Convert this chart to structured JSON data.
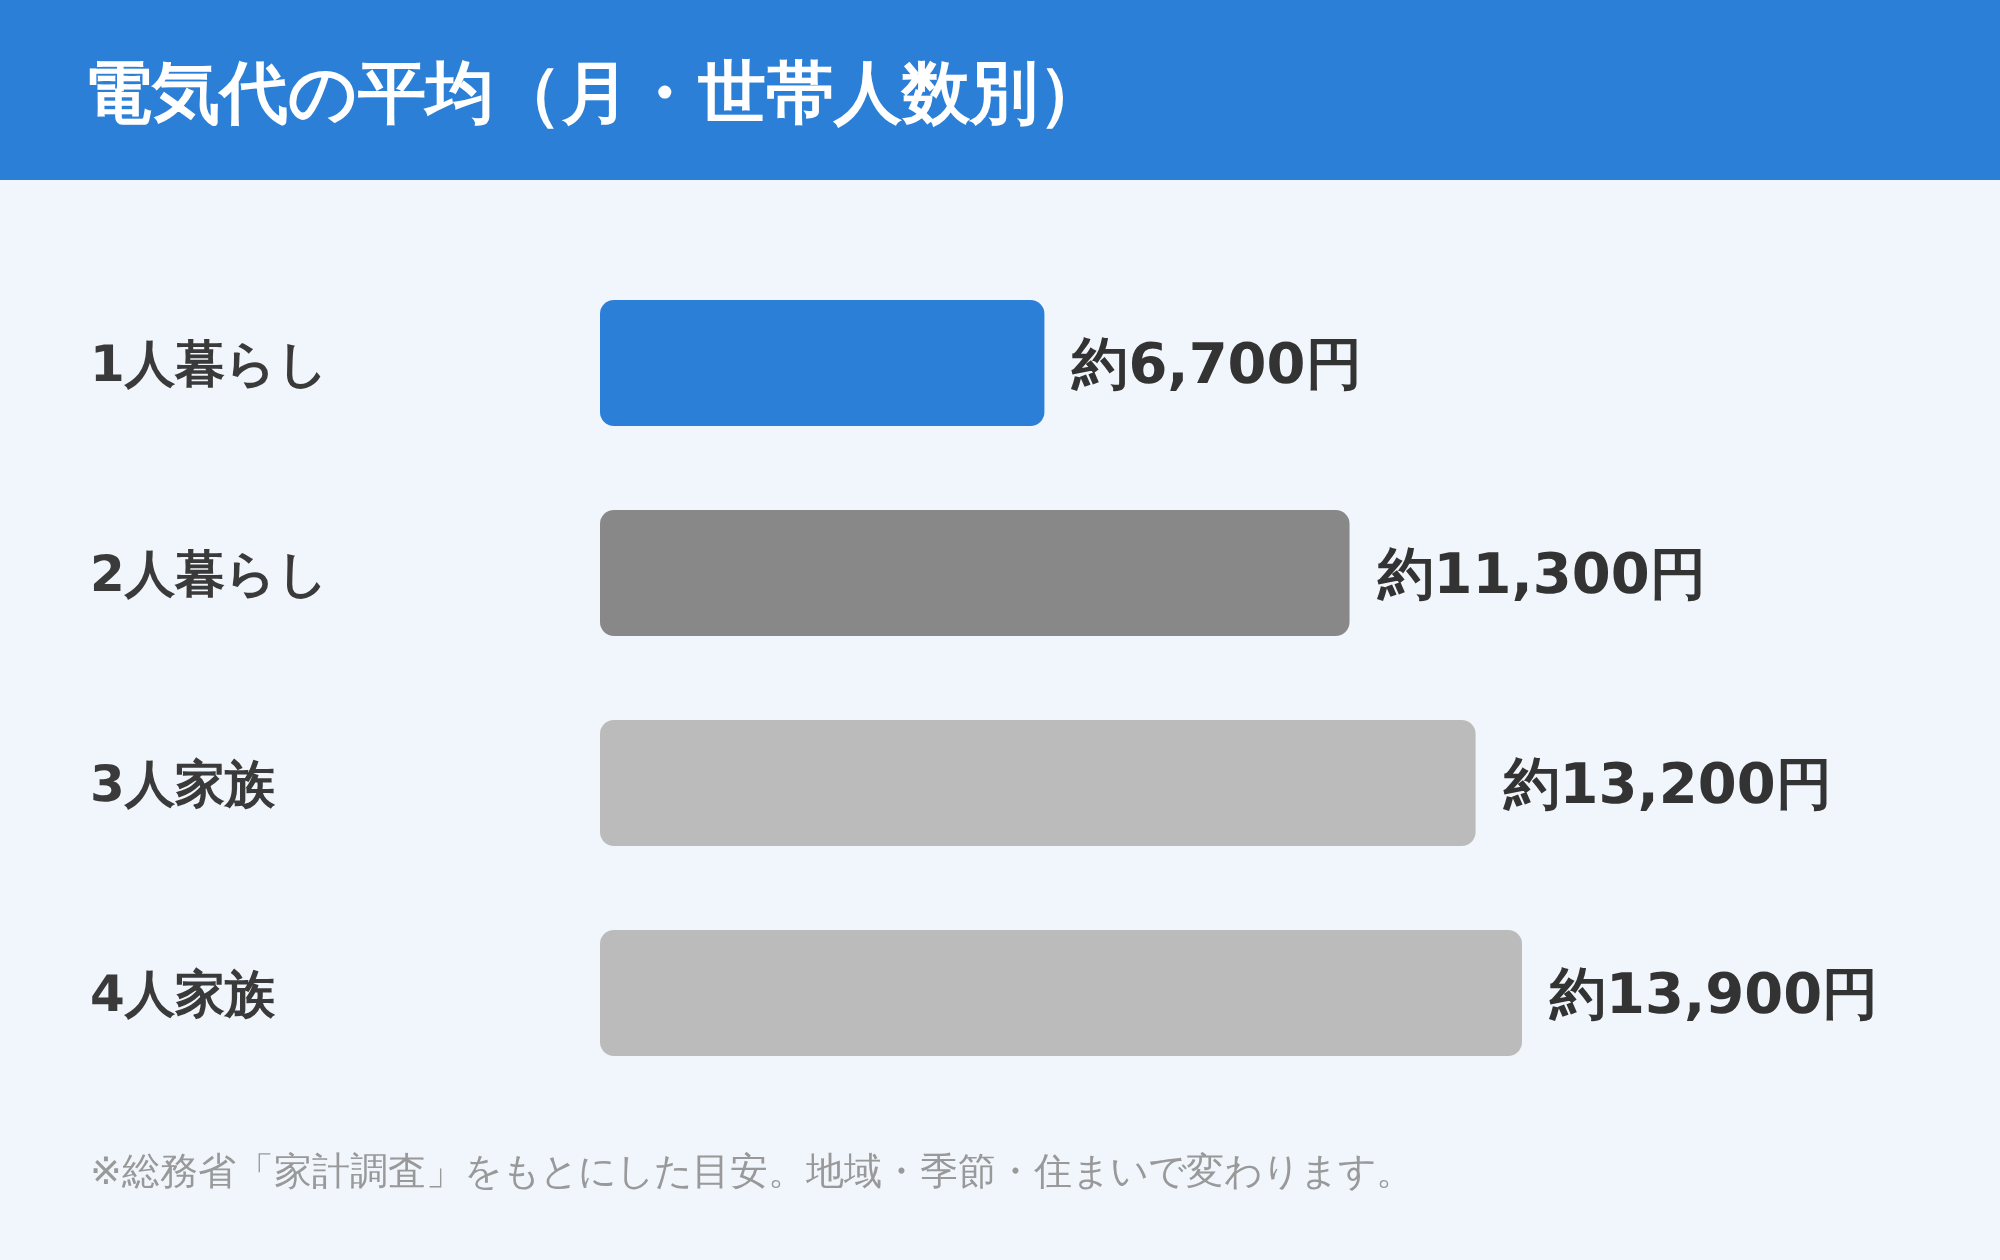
{
  "chart_data": {
    "type": "bar",
    "orientation": "horizontal",
    "title": "電気代の平均（月・世帯人数別）",
    "categories": [
      "1人暮らし",
      "2人暮らし",
      "3人家族",
      "4人家族"
    ],
    "values": [
      6700,
      11300,
      13200,
      13900
    ],
    "colors": [
      "#2b7fd6",
      "#888888",
      "#bbbbbb",
      "#bbbbbb"
    ],
    "value_labels": [
      "約6,700円",
      "約11,300円",
      "約13,200円",
      "約13,900円"
    ],
    "annotations": [
      "※総務省「家計調査」をもとにした目安。地域・季節・住まいで変わります。"
    ]
  }
}
